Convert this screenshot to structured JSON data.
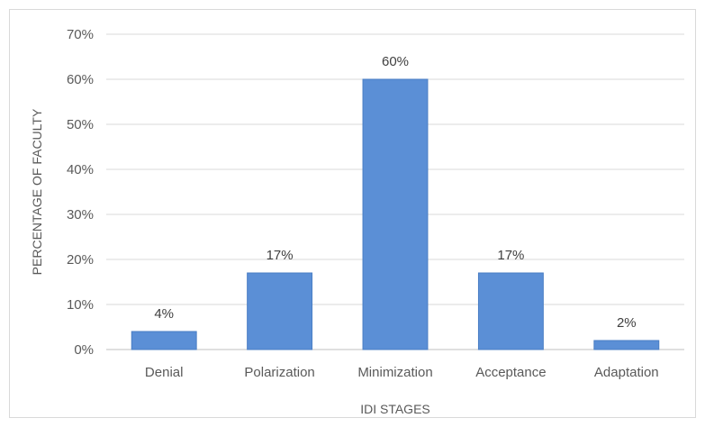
{
  "chart_data": {
    "type": "bar",
    "categories": [
      "Denial",
      "Polarization",
      "Minimization",
      "Acceptance",
      "Adaptation"
    ],
    "values": [
      4,
      17,
      60,
      17,
      2
    ],
    "data_labels": [
      "4%",
      "17%",
      "60%",
      "17%",
      "2%"
    ],
    "xlabel": "IDI STAGES",
    "ylabel": "PERCENTAGE OF FACULTY",
    "ylim": [
      0,
      70
    ],
    "yticks": [
      0,
      10,
      20,
      30,
      40,
      50,
      60,
      70
    ],
    "ytick_labels": [
      "0%",
      "10%",
      "20%",
      "30%",
      "40%",
      "50%",
      "60%",
      "70%"
    ],
    "grid": true,
    "bar_color": "#5b8fd6",
    "bar_edge_color": "#4a7ec4",
    "grid_color": "#d9d9d9"
  }
}
